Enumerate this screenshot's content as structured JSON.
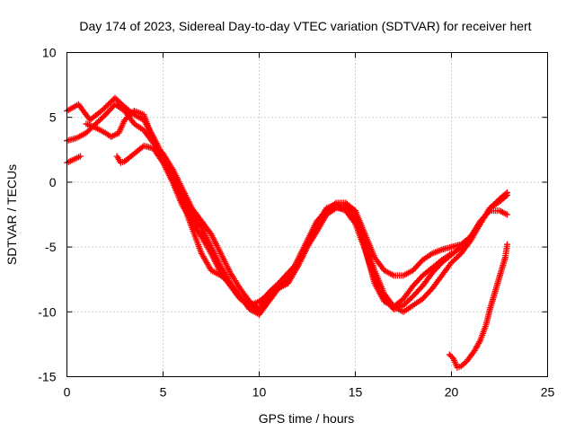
{
  "chart_data": {
    "type": "scatter",
    "title": "Day 174 of 2023, Sidereal Day-to-day VTEC variation (SDTVAR) for receiver hert",
    "xlabel": "GPS time / hours",
    "ylabel": "SDTVAR / TECUs",
    "xlim": [
      0,
      25
    ],
    "ylim": [
      -15,
      10
    ],
    "xticks": [
      0,
      5,
      10,
      15,
      20,
      25
    ],
    "yticks": [
      -15,
      -10,
      -5,
      0,
      5,
      10
    ],
    "xtick_labels": [
      "0",
      "5",
      "10",
      "15",
      "20",
      "25"
    ],
    "ytick_labels": [
      "-15",
      "-10",
      "-5",
      "0",
      "5",
      "10"
    ],
    "grid": true,
    "marker": "+",
    "color": "#ff0000",
    "series": [
      {
        "name": "track-1",
        "points": [
          [
            0,
            5.5
          ],
          [
            0.6,
            6.0
          ],
          [
            1.2,
            4.8
          ],
          [
            1.8,
            5.5
          ],
          [
            2.5,
            6.5
          ],
          [
            3.0,
            5.8
          ],
          [
            3.5,
            5.2
          ],
          [
            4.0,
            4.8
          ],
          [
            4.5,
            3.5
          ],
          [
            5.0,
            2.0
          ],
          [
            5.5,
            0.8
          ],
          [
            6.0,
            -1.0
          ],
          [
            6.5,
            -2.5
          ],
          [
            7.0,
            -3.5
          ],
          [
            7.5,
            -5.0
          ],
          [
            8.0,
            -6.5
          ],
          [
            8.5,
            -7.8
          ],
          [
            9.0,
            -8.8
          ],
          [
            9.5,
            -9.5
          ],
          [
            10.0,
            -10.0
          ],
          [
            10.5,
            -9.0
          ],
          [
            11.0,
            -8.0
          ],
          [
            11.5,
            -7.5
          ],
          [
            12.0,
            -6.5
          ],
          [
            12.5,
            -5.0
          ],
          [
            13.0,
            -3.5
          ],
          [
            13.5,
            -2.2
          ],
          [
            14.0,
            -1.6
          ],
          [
            14.5,
            -1.6
          ],
          [
            15.0,
            -2.2
          ],
          [
            15.5,
            -4.0
          ],
          [
            16.0,
            -5.8
          ],
          [
            16.5,
            -6.8
          ],
          [
            17.0,
            -7.2
          ],
          [
            17.5,
            -7.2
          ],
          [
            18.0,
            -6.8
          ],
          [
            18.5,
            -6.0
          ],
          [
            19.0,
            -5.5
          ],
          [
            19.5,
            -5.2
          ],
          [
            20.0,
            -5.0
          ],
          [
            20.5,
            -4.8
          ],
          [
            21.0,
            -4.2
          ],
          [
            21.5,
            -3.2
          ],
          [
            22.0,
            -2.0
          ],
          [
            22.5,
            -1.3
          ],
          [
            22.9,
            -0.8
          ]
        ]
      },
      {
        "name": "track-2",
        "points": [
          [
            0,
            3.2
          ],
          [
            0.5,
            3.4
          ],
          [
            1.0,
            3.8
          ],
          [
            1.5,
            4.5
          ],
          [
            2.0,
            5.2
          ],
          [
            2.5,
            6.0
          ],
          [
            3.0,
            5.5
          ],
          [
            3.5,
            4.5
          ],
          [
            4.0,
            4.0
          ],
          [
            4.5,
            3.0
          ],
          [
            5.0,
            2.2
          ],
          [
            5.5,
            1.0
          ],
          [
            6.0,
            -0.5
          ],
          [
            6.5,
            -2.0
          ],
          [
            7.0,
            -3.0
          ],
          [
            7.5,
            -4.0
          ],
          [
            8.0,
            -5.5
          ],
          [
            8.5,
            -7.0
          ],
          [
            9.0,
            -8.2
          ],
          [
            9.5,
            -9.2
          ],
          [
            10.0,
            -9.8
          ],
          [
            10.5,
            -8.5
          ],
          [
            11.0,
            -7.8
          ],
          [
            11.5,
            -7.0
          ],
          [
            12.0,
            -6.2
          ],
          [
            12.5,
            -4.8
          ],
          [
            13.0,
            -3.2
          ],
          [
            13.5,
            -2.0
          ],
          [
            14.0,
            -1.7
          ],
          [
            14.5,
            -1.8
          ],
          [
            15.0,
            -2.6
          ],
          [
            15.5,
            -4.6
          ],
          [
            16.0,
            -6.8
          ],
          [
            16.5,
            -8.6
          ],
          [
            17.0,
            -9.6
          ],
          [
            17.5,
            -10.0
          ],
          [
            18.0,
            -9.5
          ],
          [
            18.5,
            -9.0
          ],
          [
            19.0,
            -8.2
          ],
          [
            19.5,
            -7.2
          ],
          [
            20.0,
            -6.2
          ],
          [
            20.5,
            -5.5
          ],
          [
            21.0,
            -4.5
          ],
          [
            21.5,
            -3.2
          ],
          [
            22.0,
            -2.0
          ],
          [
            22.5,
            -1.5
          ],
          [
            22.9,
            -1.0
          ]
        ]
      },
      {
        "name": "track-3",
        "points": [
          [
            0,
            1.5
          ],
          [
            0.7,
            2.0
          ]
        ]
      },
      {
        "name": "track-4",
        "points": [
          [
            1.0,
            4.5
          ],
          [
            1.5,
            4.2
          ],
          [
            2.0,
            3.8
          ],
          [
            2.3,
            3.5
          ],
          [
            2.7,
            3.8
          ],
          [
            3.0,
            4.8
          ],
          [
            3.5,
            5.5
          ],
          [
            4.0,
            5.2
          ],
          [
            4.5,
            3.2
          ],
          [
            5.0,
            1.8
          ],
          [
            5.5,
            0.2
          ],
          [
            6.0,
            -1.5
          ],
          [
            6.5,
            -3.5
          ],
          [
            7.0,
            -5.5
          ],
          [
            7.5,
            -6.8
          ],
          [
            8.0,
            -7.2
          ],
          [
            8.5,
            -7.8
          ],
          [
            9.0,
            -8.8
          ],
          [
            9.5,
            -9.8
          ],
          [
            10.0,
            -10.2
          ],
          [
            10.5,
            -9.2
          ],
          [
            11.0,
            -8.2
          ],
          [
            11.5,
            -7.5
          ],
          [
            12.0,
            -6.0
          ],
          [
            12.5,
            -4.5
          ],
          [
            13.0,
            -3.0
          ],
          [
            13.5,
            -2.2
          ],
          [
            14.0,
            -1.9
          ],
          [
            14.5,
            -2.2
          ],
          [
            15.0,
            -3.2
          ],
          [
            15.5,
            -5.2
          ],
          [
            16.0,
            -7.5
          ],
          [
            16.5,
            -9.0
          ],
          [
            17.0,
            -9.8
          ],
          [
            17.5,
            -9.5
          ],
          [
            18.0,
            -8.8
          ],
          [
            18.5,
            -8.0
          ],
          [
            19.0,
            -7.0
          ],
          [
            19.5,
            -6.2
          ],
          [
            20.0,
            -5.6
          ],
          [
            20.5,
            -5.0
          ],
          [
            21.0,
            -4.2
          ],
          [
            21.5,
            -3.0
          ],
          [
            22.0,
            -2.2
          ],
          [
            22.5,
            -2.2
          ],
          [
            22.9,
            -2.5
          ]
        ]
      },
      {
        "name": "track-5",
        "points": [
          [
            2.6,
            2.0
          ],
          [
            2.8,
            1.5
          ],
          [
            3.0,
            1.6
          ],
          [
            3.5,
            2.2
          ],
          [
            4.0,
            2.8
          ],
          [
            4.5,
            2.6
          ],
          [
            5.0,
            1.5
          ],
          [
            5.5,
            0.0
          ],
          [
            6.0,
            -1.8
          ],
          [
            6.5,
            -3.0
          ],
          [
            7.0,
            -4.2
          ],
          [
            7.5,
            -5.5
          ],
          [
            8.0,
            -7.0
          ],
          [
            8.5,
            -8.0
          ],
          [
            9.0,
            -9.0
          ],
          [
            9.5,
            -9.5
          ],
          [
            10.0,
            -9.2
          ],
          [
            10.5,
            -8.6
          ],
          [
            11.0,
            -8.2
          ],
          [
            11.5,
            -7.8
          ],
          [
            12.0,
            -6.5
          ],
          [
            12.5,
            -5.0
          ],
          [
            13.0,
            -3.8
          ],
          [
            13.5,
            -2.5
          ],
          [
            14.0,
            -2.0
          ],
          [
            14.5,
            -2.0
          ],
          [
            15.0,
            -2.8
          ],
          [
            15.5,
            -5.0
          ],
          [
            16.0,
            -7.8
          ],
          [
            16.5,
            -9.2
          ],
          [
            17.0,
            -9.6
          ],
          [
            17.5,
            -9.0
          ],
          [
            18.0,
            -8.0
          ],
          [
            18.5,
            -7.2
          ],
          [
            19.0,
            -6.6
          ],
          [
            19.5,
            -6.0
          ],
          [
            20.0,
            -5.5
          ]
        ]
      },
      {
        "name": "track-6",
        "points": [
          [
            19.9,
            -13.3
          ],
          [
            20.1,
            -13.6
          ],
          [
            20.3,
            -14.3
          ],
          [
            20.5,
            -14.2
          ],
          [
            20.8,
            -13.8
          ],
          [
            21.2,
            -13.0
          ],
          [
            21.5,
            -12.2
          ],
          [
            21.8,
            -11.0
          ],
          [
            22.0,
            -9.8
          ],
          [
            22.2,
            -8.8
          ],
          [
            22.4,
            -7.8
          ],
          [
            22.6,
            -6.8
          ],
          [
            22.8,
            -5.8
          ],
          [
            22.9,
            -4.8
          ]
        ]
      }
    ]
  }
}
